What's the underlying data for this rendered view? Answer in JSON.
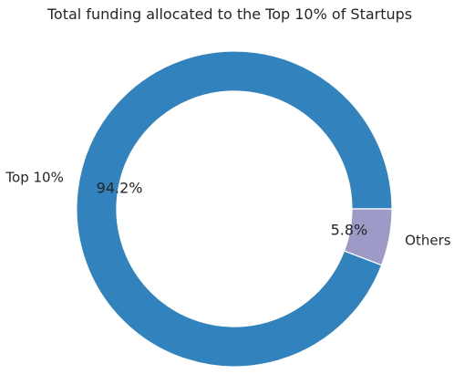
{
  "chart_data": {
    "type": "pie",
    "title": "Total funding allocated to the Top 10% of Startups",
    "donut": true,
    "slices": [
      {
        "label": "Top 10%",
        "value": 94.2,
        "pct_label": "94.2%",
        "color": "#3182bd"
      },
      {
        "label": "Others",
        "value": 5.8,
        "pct_label": "5.8%",
        "color": "#9e9ac8"
      }
    ]
  }
}
